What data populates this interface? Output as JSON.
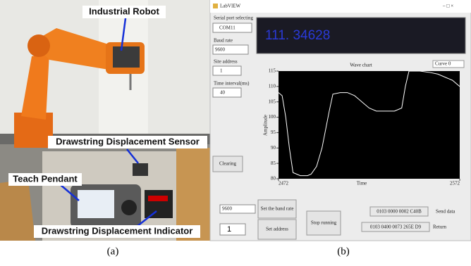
{
  "panel_a": {
    "caption": "(a)",
    "labels": [
      "Industrial Robot",
      "Drawstring Displacement Sensor",
      "Teach Pendant",
      "Drawstring Displacement Indicator"
    ]
  },
  "panel_b": {
    "caption": "(b)",
    "window_title": "LabVIEW",
    "serial_port_label": "Serial port selecting",
    "serial_port": "COM11",
    "display_value": "111. 34628",
    "baud_rate_label": "Baud rate",
    "baud_rate": "9600",
    "site_address_label": "Site address",
    "site_address": "1",
    "time_interval_label": "Time interval(ms)",
    "time_interval": "40",
    "clearing_button": "Clearing",
    "baud_input": "9600",
    "set_baud_button": "Set the band rate",
    "address_input": "1",
    "set_address_button": "Set address",
    "stop_button": "Stop running",
    "send_data": "0103 0000 0002 C40B",
    "send_data_label": "Send data",
    "return_data": "0103 0400 0073 265E D9",
    "return_label": "Return",
    "wave_chart": {
      "type": "line",
      "title": "Wave chart",
      "legend": "Curve 0",
      "x_label": "Time",
      "y_label": "Amplitude",
      "xlim": [
        2472,
        2572
      ],
      "xticks": [
        2472,
        2572
      ],
      "ylim": [
        80,
        115
      ],
      "yticks": [
        80,
        85,
        90,
        95,
        100,
        105,
        110,
        115
      ],
      "color": "#ffffff",
      "x": [
        2472,
        2474,
        2476,
        2478,
        2480,
        2484,
        2488,
        2490,
        2493,
        2496,
        2498,
        2500,
        2502,
        2506,
        2510,
        2514,
        2518,
        2522,
        2526,
        2530,
        2536,
        2540,
        2542,
        2544,
        2550,
        2556,
        2560,
        2564,
        2568,
        2572
      ],
      "y": [
        108,
        107,
        100,
        90,
        82,
        81,
        81,
        81.5,
        84,
        90,
        96,
        102,
        107.5,
        108,
        108,
        107,
        105,
        103,
        102,
        102,
        102,
        103,
        110,
        115,
        115,
        114.5,
        114,
        113,
        112,
        110
      ]
    }
  }
}
